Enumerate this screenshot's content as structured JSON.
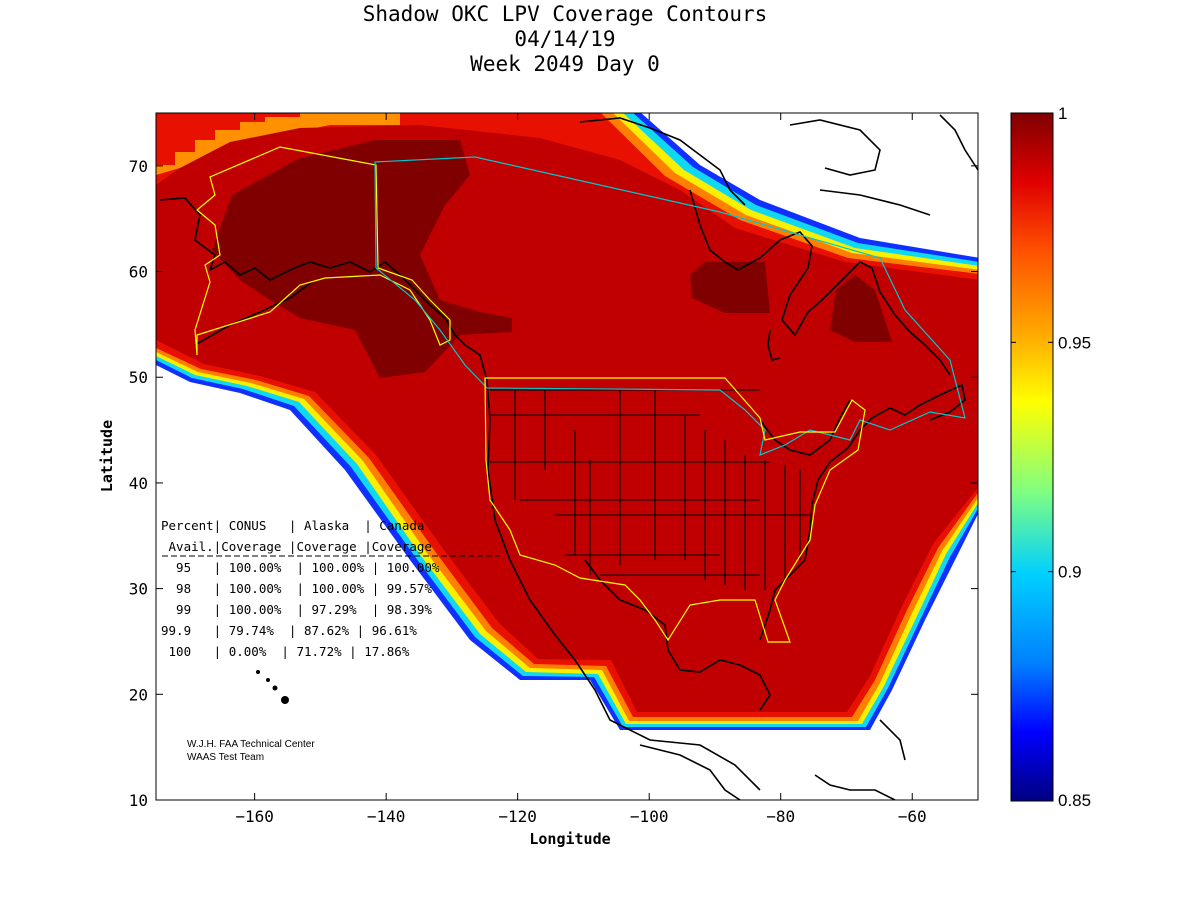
{
  "title": {
    "line1": "Shadow OKC LPV Coverage Contours",
    "line2": "04/14/19",
    "line3": "Week 2049 Day 0"
  },
  "axes": {
    "xlabel": "Longitude",
    "ylabel": "Latitude",
    "xlim": [
      -175,
      -50
    ],
    "ylim": [
      10,
      75
    ],
    "xticks": [
      -160,
      -140,
      -120,
      -100,
      -80,
      -60
    ],
    "yticks": [
      10,
      20,
      30,
      40,
      50,
      60,
      70
    ]
  },
  "colorbar": {
    "range": [
      0.85,
      1
    ],
    "ticks": [
      {
        "value": 1,
        "label": "1"
      },
      {
        "value": 0.95,
        "label": "0.95"
      },
      {
        "value": 0.9,
        "label": "0.9"
      },
      {
        "value": 0.85,
        "label": "0.85"
      }
    ]
  },
  "stats_table": {
    "header1": "Percent| CONUS   | Alaska  | Canada",
    "header2": " Avail.|Coverage |Coverage |Coverage",
    "rows": [
      "  95   | 100.00%  | 100.00% | 100.00%",
      "  98   | 100.00%  | 100.00% | 99.57%",
      "  99   | 100.00%  | 97.29%  | 98.39%",
      "99.9   | 79.74%  | 87.62% | 96.61%",
      " 100   | 0.00%  | 71.72% | 17.86%"
    ]
  },
  "credits": {
    "line1": "W.J.H. FAA Technical Center",
    "line2": "WAAS Test Team"
  },
  "colors": {
    "coverage_main": "#c00000",
    "coverage_max": "#800000",
    "coastline": "#000000",
    "region_outline": "#ffff00",
    "canada_outline": "#00c8d0"
  }
}
